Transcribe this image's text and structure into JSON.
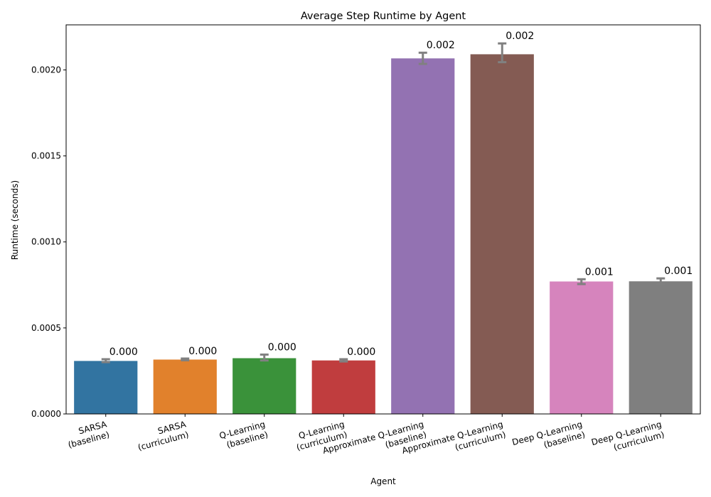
{
  "chart_data": {
    "type": "bar",
    "title": "Average Step Runtime by Agent",
    "xlabel": "Agent",
    "ylabel": "Runtime (seconds)",
    "ylim": [
      0,
      0.002262
    ],
    "yticks": [
      "0.0000",
      "0.0005",
      "0.0010",
      "0.0015",
      "0.0020"
    ],
    "ytick_values": [
      0,
      0.0005,
      0.001,
      0.0015,
      0.002
    ],
    "grid": false,
    "legend": "none",
    "categories": [
      [
        "SARSA",
        "(baseline)"
      ],
      [
        "SARSA",
        "(curriculum)"
      ],
      [
        "Q-Learning",
        "(baseline)"
      ],
      [
        "Q-Learning",
        "(curriculum)"
      ],
      [
        "Approximate Q-Learning",
        "(baseline)"
      ],
      [
        "Approximate Q-Learning",
        "(curriculum)"
      ],
      [
        "Deep Q-Learning",
        "(baseline)"
      ],
      [
        "Deep Q-Learning",
        "(curriculum)"
      ]
    ],
    "values": [
      0.000308,
      0.000316,
      0.000324,
      0.000311,
      0.002067,
      0.002091,
      0.00077,
      0.000771
    ],
    "error_low": [
      0.000301,
      0.000312,
      0.000311,
      0.000305,
      0.002035,
      0.002045,
      0.000755,
      0.000752
    ],
    "error_high": [
      0.000318,
      0.000322,
      0.000345,
      0.000318,
      0.0021,
      0.002154,
      0.000783,
      0.000788
    ],
    "data_labels": [
      "0.000",
      "0.000",
      "0.000",
      "0.000",
      "0.002",
      "0.002",
      "0.001",
      "0.001"
    ],
    "colors": [
      "#3274a1",
      "#e1812c",
      "#3a923a",
      "#c03d3e",
      "#9372b2",
      "#845b53",
      "#d684bd",
      "#7f7f7f"
    ],
    "error_color": "#808080"
  }
}
